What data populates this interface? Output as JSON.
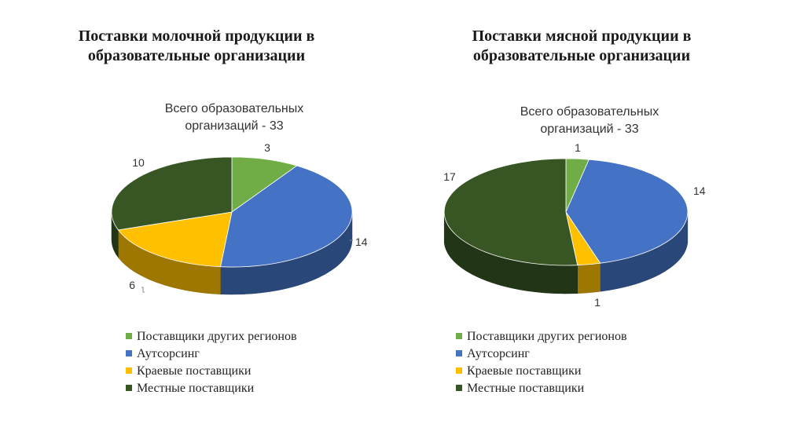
{
  "chart_data": [
    {
      "type": "pie",
      "title": "Поставки молочной продукции в образовательные организации",
      "subtitle": "Всего образовательных организаций - 33",
      "categories": [
        "Поставщики других регионов",
        "Аутсорсинг",
        "Краевые поставщики",
        "Местные поставщики"
      ],
      "values": [
        3,
        14,
        6,
        10
      ],
      "colors": [
        "#70ad47",
        "#4472c4",
        "#ffc000",
        "#375623"
      ],
      "data_labels": [
        "3",
        "14",
        "6",
        "10"
      ],
      "legend_position": "bottom"
    },
    {
      "type": "pie",
      "title": "Поставки мясной продукции в образовательные организации",
      "subtitle": "Всего образовательных организаций - 33",
      "categories": [
        "Поставщики других регионов",
        "Аутсорсинг",
        "Краевые поставщики",
        "Местные поставщики"
      ],
      "values": [
        1,
        14,
        1,
        17
      ],
      "colors": [
        "#70ad47",
        "#4472c4",
        "#ffc000",
        "#375623"
      ],
      "data_labels": [
        "1",
        "14",
        "1",
        "17"
      ],
      "legend_position": "bottom"
    }
  ]
}
